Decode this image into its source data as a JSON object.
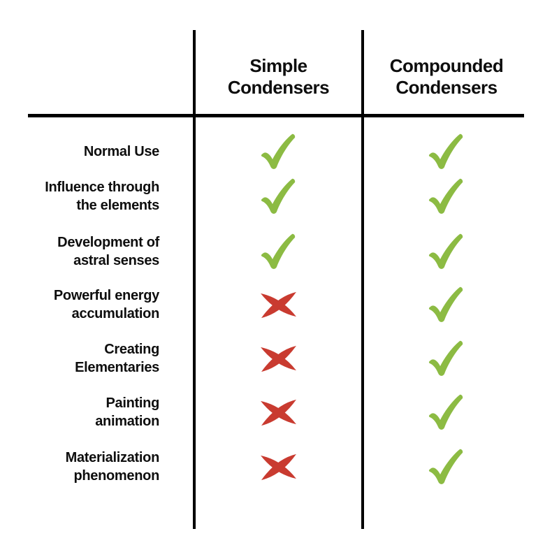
{
  "table": {
    "headers": [
      {
        "id": "simple",
        "lines": [
          "Simple",
          "Condensers"
        ]
      },
      {
        "id": "compounded",
        "lines": [
          "Compounded",
          "Condensers"
        ]
      }
    ],
    "rows": [
      {
        "label_lines": [
          "Normal Use"
        ],
        "simple": "check",
        "compounded": "check"
      },
      {
        "label_lines": [
          "Influence through",
          "the elements"
        ],
        "simple": "check",
        "compounded": "check"
      },
      {
        "label_lines": [
          "Development of",
          "astral senses"
        ],
        "simple": "check",
        "compounded": "check"
      },
      {
        "label_lines": [
          "Powerful energy",
          "accumulation"
        ],
        "simple": "cross",
        "compounded": "check"
      },
      {
        "label_lines": [
          "Creating",
          "Elementaries"
        ],
        "simple": "cross",
        "compounded": "check"
      },
      {
        "label_lines": [
          "Painting",
          "animation"
        ],
        "simple": "cross",
        "compounded": "check"
      },
      {
        "label_lines": [
          "Materialization",
          "phenomenon"
        ],
        "simple": "cross",
        "compounded": "check"
      }
    ]
  },
  "icons": {
    "check": "check-icon",
    "cross": "cross-icon"
  },
  "colors": {
    "check_green": "#8CBB43",
    "cross_red": "#C93B30",
    "line_black": "#000000",
    "background": "#FFFFFF"
  }
}
